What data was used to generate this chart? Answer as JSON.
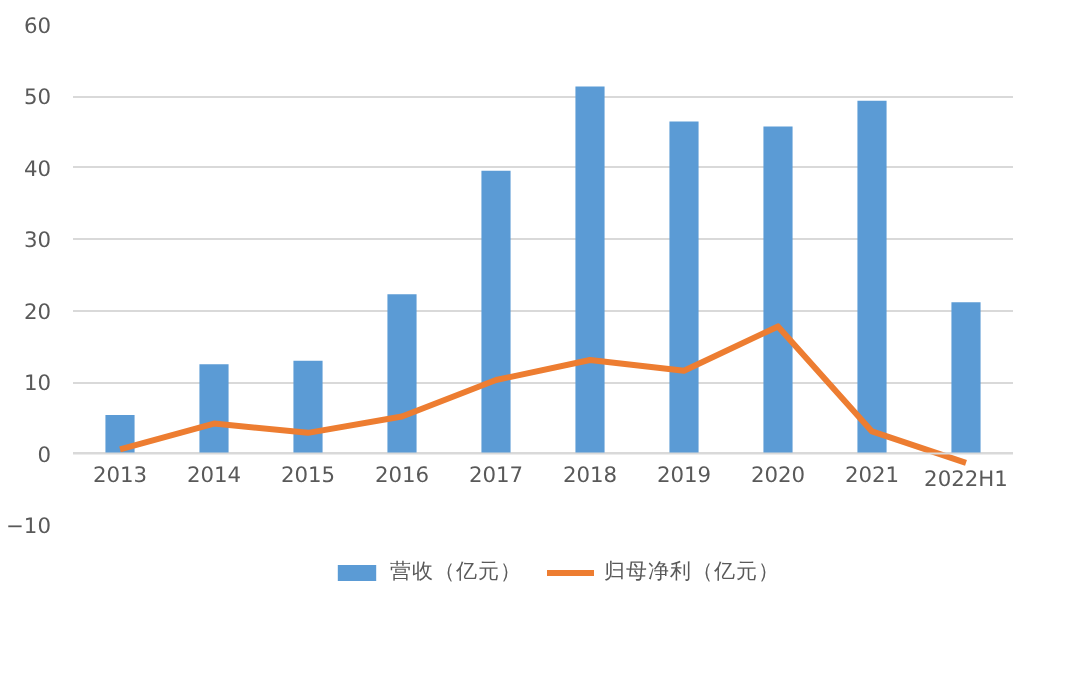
{
  "chart_data": {
    "type": "bar",
    "categories": [
      "2013",
      "2014",
      "2015",
      "2016",
      "2017",
      "2018",
      "2019",
      "2020",
      "2021",
      "2022H1"
    ],
    "series": [
      {
        "name": "营收（亿元）",
        "color": "#5b9bd5",
        "values": [
          5.4,
          12.5,
          13.0,
          22.3,
          39.6,
          51.4,
          46.5,
          45.8,
          49.4,
          21.2
        ]
      },
      {
        "name": "归母净利（亿元）",
        "type": "line",
        "color": "#ed7d31",
        "values": [
          0.6,
          4.2,
          2.9,
          5.2,
          10.3,
          13.1,
          11.6,
          17.8,
          3.1,
          -1.3
        ]
      }
    ],
    "ylim": [
      -10,
      60
    ],
    "yticks": [
      -10,
      0,
      10,
      20,
      30,
      40,
      50,
      60
    ],
    "grid": "y",
    "legend": "bottom",
    "line_style": "solid",
    "marker": "none"
  }
}
